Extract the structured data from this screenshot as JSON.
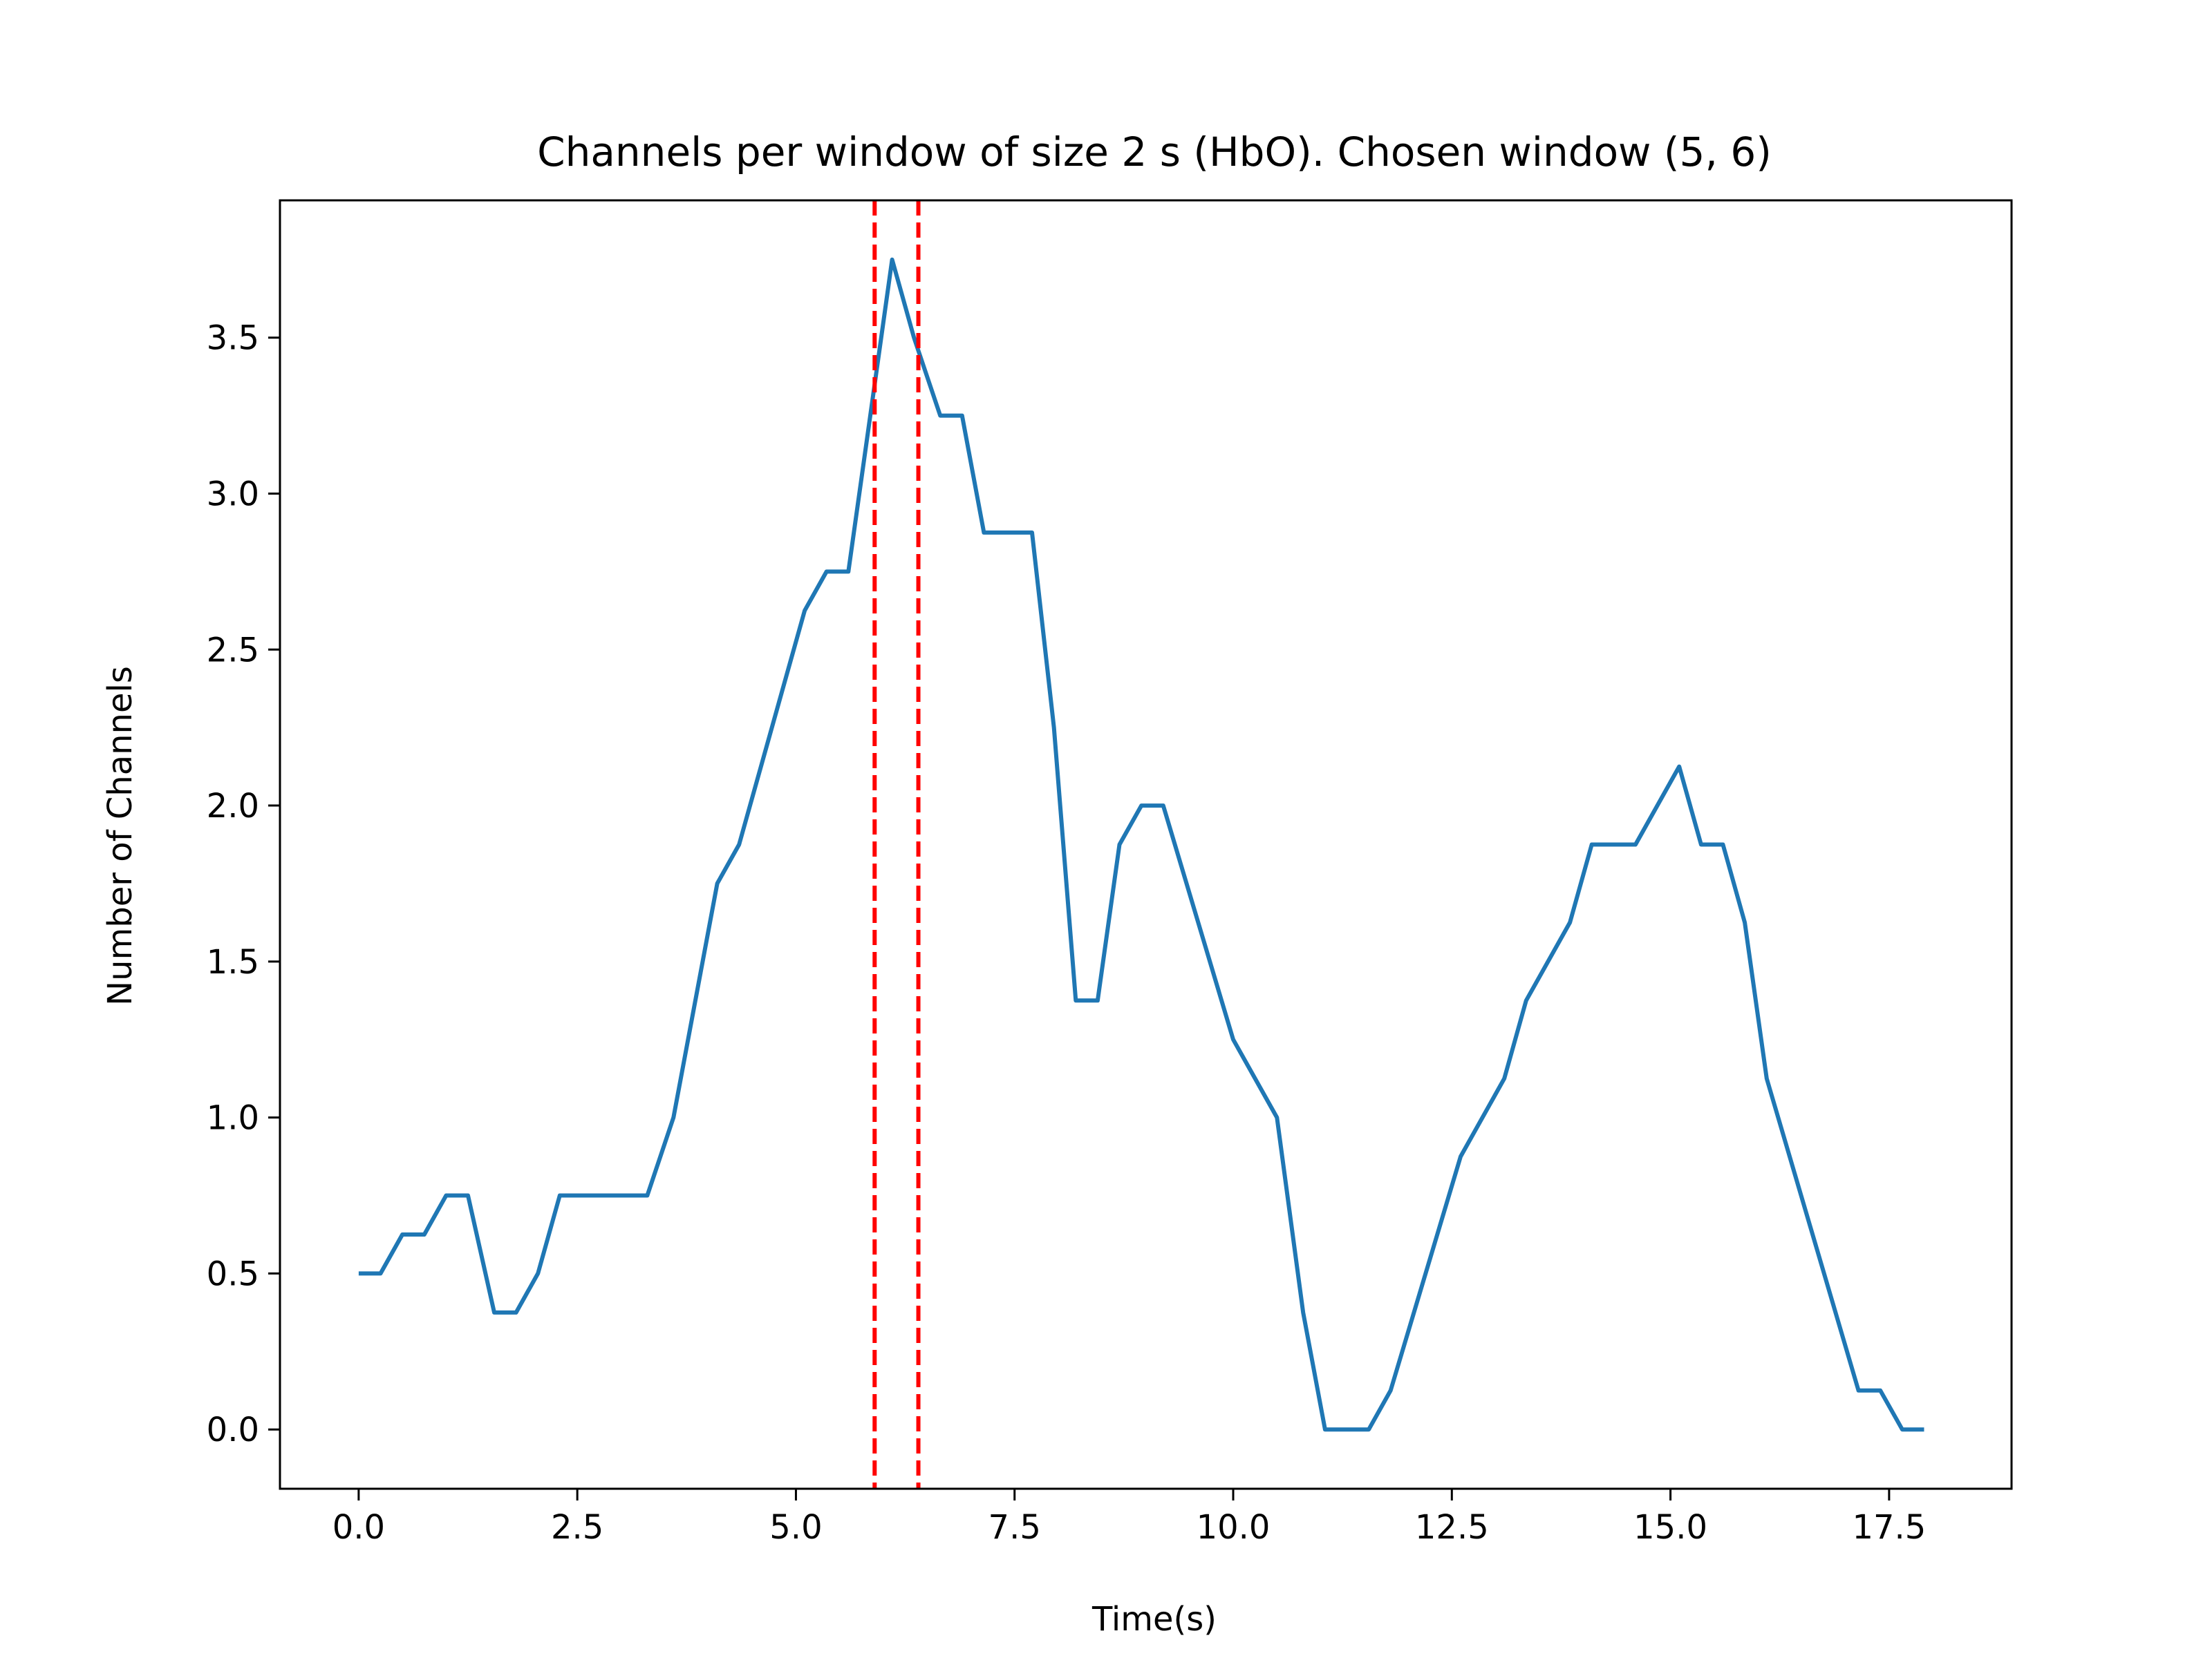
{
  "chart_data": {
    "type": "line",
    "title": "Channels per window of size 2 s (HbO). Chosen window (5, 6)",
    "xlabel": "Time(s)",
    "ylabel": "Number of Channels",
    "xlim": [
      -0.9,
      18.9
    ],
    "ylim": [
      -0.19,
      3.94
    ],
    "xticks": [
      0.0,
      2.5,
      5.0,
      7.5,
      10.0,
      12.5,
      15.0,
      17.5
    ],
    "xtick_labels": [
      "0.0",
      "2.5",
      "5.0",
      "7.5",
      "10.0",
      "12.5",
      "15.0",
      "17.5"
    ],
    "yticks": [
      0.0,
      0.5,
      1.0,
      1.5,
      2.0,
      2.5,
      3.0,
      3.5
    ],
    "ytick_labels": [
      "0.0",
      "0.5",
      "1.0",
      "1.5",
      "2.0",
      "2.5",
      "3.0",
      "3.5"
    ],
    "grid": false,
    "series": [
      {
        "color": "#1f77b4",
        "x": [
          0.0,
          0.25,
          0.5,
          0.75,
          1.0,
          1.25,
          1.55,
          1.8,
          2.05,
          2.3,
          2.55,
          2.8,
          3.05,
          3.3,
          3.6,
          4.1,
          4.35,
          5.1,
          5.35,
          5.6,
          5.85,
          6.1,
          6.35,
          6.65,
          6.9,
          7.15,
          7.4,
          7.7,
          7.95,
          8.2,
          8.45,
          8.7,
          8.95,
          9.2,
          10.0,
          10.5,
          10.8,
          11.05,
          11.3,
          11.55,
          11.8,
          12.6,
          13.1,
          13.35,
          13.85,
          14.1,
          14.35,
          14.6,
          15.1,
          15.35,
          15.6,
          15.85,
          16.1,
          17.15,
          17.4,
          17.65,
          17.9
        ],
        "y": [
          0.5,
          0.5,
          0.625,
          0.625,
          0.75,
          0.75,
          0.375,
          0.375,
          0.5,
          0.75,
          0.75,
          0.75,
          0.75,
          0.75,
          1.0,
          1.75,
          1.875,
          2.625,
          2.75,
          2.75,
          3.25,
          3.75,
          3.5,
          3.25,
          3.25,
          2.875,
          2.875,
          2.875,
          2.25,
          1.375,
          1.375,
          1.875,
          2.0,
          2.0,
          1.25,
          1.0,
          0.375,
          0.0,
          0.0,
          0.0,
          0.125,
          0.875,
          1.125,
          1.375,
          1.625,
          1.875,
          1.875,
          1.875,
          2.125,
          1.875,
          1.875,
          1.625,
          1.125,
          0.125,
          0.125,
          0.0,
          0.0
        ]
      }
    ],
    "vlines": [
      {
        "x": 5.9,
        "color": "#ff0000",
        "style": "dashed"
      },
      {
        "x": 6.4,
        "color": "#ff0000",
        "style": "dashed"
      }
    ]
  }
}
